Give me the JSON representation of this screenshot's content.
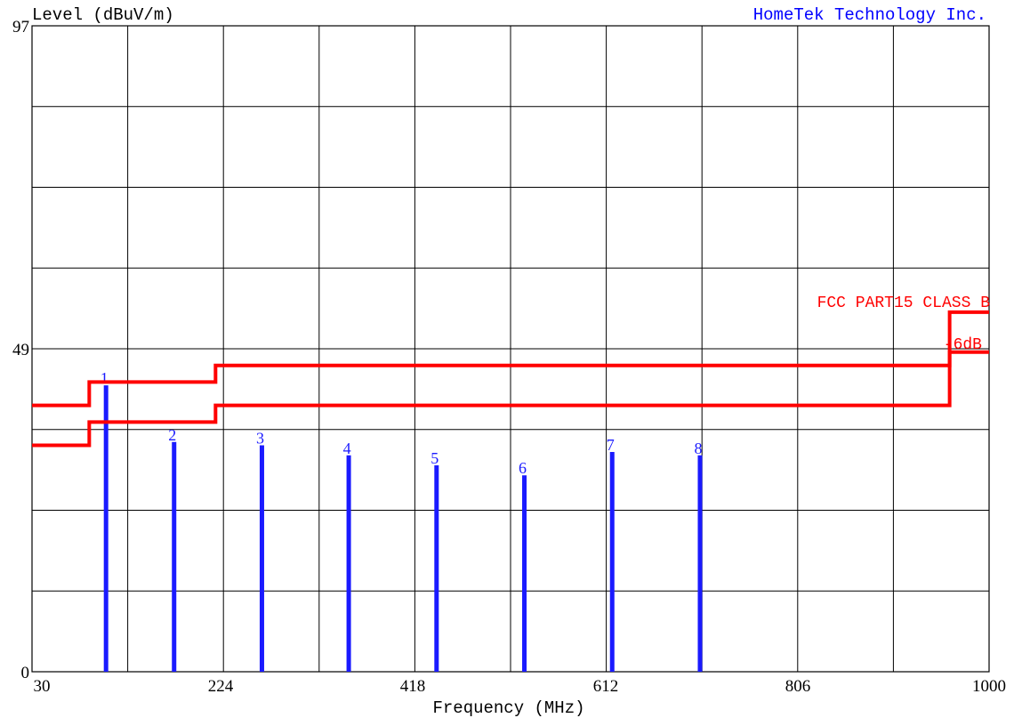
{
  "chart_data": {
    "type": "bar",
    "title": "",
    "ylabel": "Level (dBuV/m)",
    "xlabel": "Frequency (MHz)",
    "brand": "HomeTek Technology Inc.",
    "xlim": [
      30,
      1000
    ],
    "ylim": [
      0,
      97
    ],
    "x_ticks": [
      "30",
      "224",
      "418",
      "612",
      "806",
      "1000"
    ],
    "y_tick_labels": [
      "0",
      "49",
      "97"
    ],
    "grid": true,
    "colors": {
      "limit": "#ff0000",
      "measurement": "#1a1aff",
      "brand": "#0000ff",
      "grid": "#000000"
    },
    "limit_lines": [
      {
        "name": "FCC PART15 CLASS B",
        "points": [
          [
            30,
            40
          ],
          [
            88,
            40
          ],
          [
            88,
            43.5
          ],
          [
            216,
            43.5
          ],
          [
            216,
            46
          ],
          [
            960,
            46
          ],
          [
            960,
            54
          ],
          [
            1000,
            54
          ]
        ]
      },
      {
        "name": "-6dB",
        "points": [
          [
            30,
            34
          ],
          [
            88,
            34
          ],
          [
            88,
            37.5
          ],
          [
            216,
            37.5
          ],
          [
            216,
            40
          ],
          [
            960,
            40
          ],
          [
            960,
            48
          ],
          [
            1000,
            48
          ]
        ]
      }
    ],
    "measurements": [
      {
        "label": "1",
        "freq": 105,
        "level": 43
      },
      {
        "label": "2",
        "freq": 174,
        "level": 34.5
      },
      {
        "label": "3",
        "freq": 263,
        "level": 34
      },
      {
        "label": "4",
        "freq": 351,
        "level": 32.5
      },
      {
        "label": "5",
        "freq": 440,
        "level": 31
      },
      {
        "label": "6",
        "freq": 529,
        "level": 29.5
      },
      {
        "label": "7",
        "freq": 618,
        "level": 33
      },
      {
        "label": "8",
        "freq": 707,
        "level": 32.5
      }
    ]
  }
}
